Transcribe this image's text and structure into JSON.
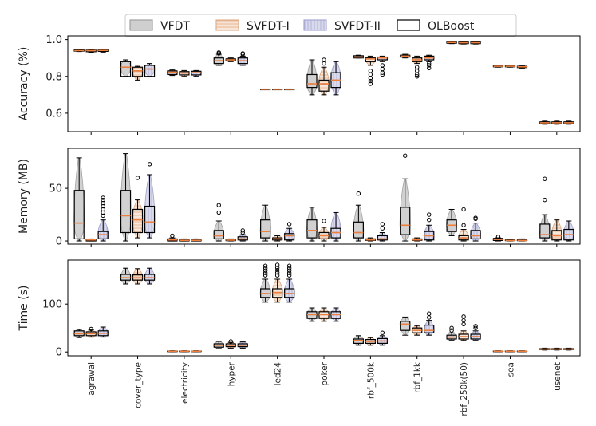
{
  "chart_data": {
    "type": "boxplot-violin",
    "legend": {
      "placement": "top-center",
      "entries": [
        {
          "name": "VFDT",
          "style": "violin",
          "fill": "#cfcfcf"
        },
        {
          "name": "SVFDT-I",
          "style": "violin-hatched-orange",
          "fill": "#f6e6da"
        },
        {
          "name": "SVFDT-II",
          "style": "violin-hatched-blue",
          "fill": "#d9d9ec"
        },
        {
          "name": "OLBoost",
          "style": "box",
          "fill": "none"
        }
      ]
    },
    "categories": [
      "agrawal",
      "cover_type",
      "electricity",
      "hyper",
      "led24",
      "poker",
      "rbf_500k",
      "rbf_1kk",
      "rbf_250k(50)",
      "sea",
      "usenet"
    ],
    "panels": [
      {
        "ylabel": "Accuracy (%)",
        "ylim": [
          0.5,
          1.02
        ],
        "yticks": [
          0.6,
          0.8,
          1.0
        ],
        "ytick_labels": [
          "0.6",
          "0.8",
          "1.0"
        ],
        "boxes": [
          [
            [
              0.935,
              0.937,
              0.94,
              0.944,
              0.946,
              []
            ],
            [
              0.93,
              0.934,
              0.94,
              0.943,
              0.946,
              []
            ],
            [
              0.932,
              0.936,
              0.941,
              0.944,
              0.946,
              []
            ]
          ],
          [
            [
              0.8,
              0.8,
              0.85,
              0.88,
              0.89,
              []
            ],
            [
              0.78,
              0.8,
              0.83,
              0.85,
              0.855,
              []
            ],
            [
              0.8,
              0.8,
              0.84,
              0.86,
              0.87,
              []
            ]
          ],
          [
            [
              0.805,
              0.81,
              0.823,
              0.83,
              0.835,
              []
            ],
            [
              0.8,
              0.808,
              0.818,
              0.826,
              0.832,
              []
            ],
            [
              0.8,
              0.808,
              0.82,
              0.828,
              0.832,
              []
            ]
          ],
          [
            [
              0.86,
              0.87,
              0.885,
              0.9,
              0.92,
              [
                0.925,
                0.93
              ]
            ],
            [
              0.88,
              0.885,
              0.89,
              0.895,
              0.9,
              []
            ],
            [
              0.86,
              0.87,
              0.885,
              0.9,
              0.91,
              [
                0.92,
                0.925
              ]
            ]
          ],
          [
            [
              0.728,
              0.729,
              0.73,
              0.731,
              0.732,
              []
            ],
            [
              0.728,
              0.729,
              0.73,
              0.731,
              0.732,
              []
            ],
            [
              0.728,
              0.729,
              0.73,
              0.731,
              0.732,
              []
            ]
          ],
          [
            [
              0.7,
              0.74,
              0.76,
              0.81,
              0.89,
              []
            ],
            [
              0.7,
              0.72,
              0.76,
              0.78,
              0.85,
              [
                0.87,
                0.89
              ]
            ],
            [
              0.7,
              0.74,
              0.78,
              0.82,
              0.88,
              []
            ]
          ],
          [
            [
              0.9,
              0.9,
              0.905,
              0.912,
              0.915,
              []
            ],
            [
              0.86,
              0.88,
              0.895,
              0.9,
              0.91,
              [
                0.83,
                0.81,
                0.79,
                0.775,
                0.76
              ]
            ],
            [
              0.88,
              0.89,
              0.9,
              0.905,
              0.91,
              [
                0.86,
                0.84,
                0.82,
                0.81
              ]
            ]
          ],
          [
            [
              0.9,
              0.905,
              0.91,
              0.915,
              0.92,
              []
            ],
            [
              0.87,
              0.88,
              0.89,
              0.9,
              0.91,
              [
                0.85,
                0.83,
                0.81,
                0.8
              ]
            ],
            [
              0.88,
              0.89,
              0.9,
              0.91,
              0.915,
              [
                0.87,
                0.86,
                0.845
              ]
            ]
          ],
          [
            [
              0.978,
              0.98,
              0.984,
              0.988,
              0.99,
              []
            ],
            [
              0.976,
              0.978,
              0.983,
              0.987,
              0.99,
              []
            ],
            [
              0.976,
              0.978,
              0.983,
              0.987,
              0.99,
              []
            ]
          ],
          [
            [
              0.85,
              0.852,
              0.855,
              0.858,
              0.86,
              []
            ],
            [
              0.85,
              0.852,
              0.855,
              0.858,
              0.86,
              []
            ],
            [
              0.845,
              0.848,
              0.852,
              0.855,
              0.857,
              []
            ]
          ],
          [
            [
              0.54,
              0.543,
              0.548,
              0.553,
              0.557,
              []
            ],
            [
              0.54,
              0.543,
              0.548,
              0.553,
              0.557,
              []
            ],
            [
              0.54,
              0.543,
              0.548,
              0.553,
              0.557,
              []
            ]
          ]
        ]
      },
      {
        "ylabel": "Memory (MB)",
        "ylim": [
          -3,
          88
        ],
        "yticks": [
          0,
          50
        ],
        "ytick_labels": [
          "0",
          "50"
        ],
        "boxes": [
          [
            [
              0,
              2,
              17,
              48,
              79,
              []
            ],
            [
              0,
              0,
              1,
              1,
              2,
              []
            ],
            [
              0,
              2,
              6,
              9,
              20,
              [
                24,
                27,
                30,
                33,
                36,
                39,
                41
              ]
            ]
          ],
          [
            [
              0,
              8,
              24,
              48,
              83,
              []
            ],
            [
              3,
              8,
              20,
              30,
              39,
              [
                60
              ]
            ],
            [
              3,
              8,
              18,
              33,
              63,
              [
                73
              ]
            ]
          ],
          [
            [
              0,
              0,
              1,
              2,
              3,
              [
                5
              ]
            ],
            [
              0,
              0,
              0.6,
              1,
              2,
              []
            ],
            [
              0,
              0,
              0.6,
              1,
              2,
              []
            ]
          ],
          [
            [
              0,
              2,
              5,
              10,
              19,
              [
                27,
                34
              ]
            ],
            [
              0,
              0.3,
              0.8,
              1,
              2,
              []
            ],
            [
              0,
              1,
              2,
              4,
              6,
              [
                8,
                10
              ]
            ]
          ],
          [
            [
              0,
              3,
              9,
              20,
              34,
              []
            ],
            [
              0,
              1,
              2,
              3,
              5,
              []
            ],
            [
              0,
              1,
              5,
              7,
              12,
              [
                16
              ]
            ]
          ],
          [
            [
              0,
              3,
              10,
              20,
              32,
              []
            ],
            [
              0,
              2,
              5,
              8,
              13,
              [
                19
              ]
            ],
            [
              0,
              3,
              8,
              12,
              27,
              []
            ]
          ],
          [
            [
              0,
              3,
              8,
              18,
              34,
              [
                45
              ]
            ],
            [
              0,
              0.5,
              1,
              2,
              3,
              []
            ],
            [
              0,
              1,
              2,
              5,
              8,
              [
                12,
                16
              ]
            ]
          ],
          [
            [
              0,
              6,
              15,
              32,
              59,
              [
                81
              ]
            ],
            [
              0,
              0.5,
              1,
              2,
              3,
              []
            ],
            [
              0,
              1,
              5,
              9,
              15,
              [
                20,
                25
              ]
            ]
          ],
          [
            [
              5,
              9,
              15,
              20,
              30,
              []
            ],
            [
              0,
              1,
              3,
              5,
              11,
              [
                15,
                30
              ]
            ],
            [
              0,
              2,
              5,
              10,
              17,
              [
                21,
                22
              ]
            ]
          ],
          [
            [
              0,
              0.5,
              1.5,
              2.5,
              3,
              [
                4
              ]
            ],
            [
              0,
              0.3,
              0.5,
              1,
              1.5,
              []
            ],
            [
              0,
              0.3,
              0.5,
              1,
              2,
              []
            ]
          ],
          [
            [
              0,
              3,
              6,
              16,
              25,
              [
                39,
                59
              ]
            ],
            [
              0,
              1,
              5,
              10,
              20,
              []
            ],
            [
              0,
              1,
              6,
              11,
              19,
              []
            ]
          ]
        ]
      },
      {
        "ylabel": "Time (s)",
        "ylim": [
          -8,
          192
        ],
        "yticks": [
          0,
          100
        ],
        "ytick_labels": [
          "0",
          "100"
        ],
        "boxes": [
          [
            [
              30,
              34,
              38,
              44,
              47,
              []
            ],
            [
              31,
              34,
              38,
              42,
              46,
              [
                48
              ]
            ],
            [
              31,
              34,
              39,
              44,
              52,
              []
            ]
          ],
          [
            [
              142,
              150,
              155,
              162,
              175,
              []
            ],
            [
              142,
              150,
              155,
              161,
              174,
              []
            ],
            [
              142,
              150,
              155,
              162,
              175,
              []
            ]
          ],
          [
            [
              0.5,
              1.0,
              1.5,
              2.0,
              2.5,
              []
            ],
            [
              0.5,
              1.0,
              1.5,
              2.0,
              2.5,
              []
            ],
            [
              0.5,
              1.0,
              1.5,
              2.0,
              2.5,
              []
            ]
          ],
          [
            [
              7,
              10,
              14,
              17,
              22,
              []
            ],
            [
              8,
              11,
              14,
              17,
              20,
              [
                22
              ]
            ],
            [
              8,
              11,
              14,
              17,
              21,
              []
            ]
          ],
          [
            [
              104,
              114,
              122,
              132,
              152,
              [
                160,
                165,
                170,
                175,
                180
              ]
            ],
            [
              104,
              114,
              124,
              132,
              152,
              [
                160,
                166,
                171,
                176,
                182
              ]
            ],
            [
              104,
              114,
              122,
              132,
              152,
              [
                160,
                165,
                170,
                175,
                180
              ]
            ]
          ],
          [
            [
              64,
              70,
              78,
              84,
              92,
              []
            ],
            [
              64,
              70,
              78,
              84,
              92,
              []
            ],
            [
              64,
              70,
              78,
              84,
              92,
              []
            ]
          ],
          [
            [
              14,
              18,
              24,
              27,
              34,
              []
            ],
            [
              14,
              18,
              22,
              26,
              30,
              []
            ],
            [
              14,
              18,
              23,
              28,
              34,
              [
                40
              ]
            ]
          ],
          [
            [
              35,
              45,
              58,
              64,
              73,
              []
            ],
            [
              35,
              40,
              45,
              50,
              55,
              []
            ],
            [
              35,
              40,
              45,
              56,
              66,
              [
                72,
                80
              ]
            ]
          ],
          [
            [
              24,
              27,
              31,
              35,
              40,
              [
                45,
                50
              ]
            ],
            [
              24,
              27,
              32,
              37,
              44,
              [
                58,
                66,
                74
              ]
            ],
            [
              24,
              27,
              32,
              37,
              44,
              [
                50,
                54
              ]
            ]
          ],
          [
            [
              0.5,
              1.0,
              1.5,
              2.0,
              2.5,
              []
            ],
            [
              0.5,
              1.0,
              1.5,
              2.0,
              2.5,
              []
            ],
            [
              0.5,
              1.0,
              1.5,
              2.0,
              2.5,
              []
            ]
          ],
          [
            [
              4,
              5,
              6,
              7,
              8,
              []
            ],
            [
              4,
              5,
              6,
              7,
              8,
              []
            ],
            [
              4,
              5,
              6,
              7,
              8,
              []
            ]
          ]
        ]
      }
    ]
  }
}
